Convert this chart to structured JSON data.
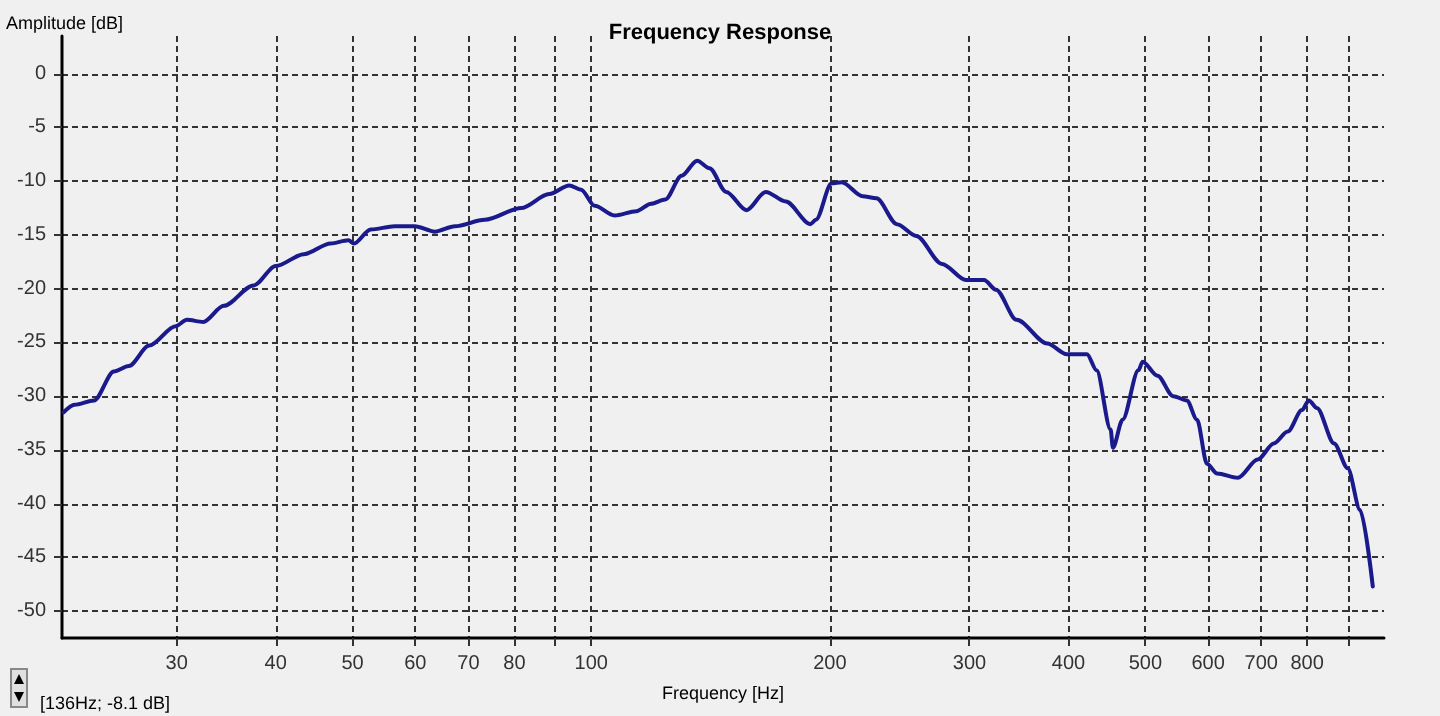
{
  "chart_data": {
    "type": "line",
    "title": "Frequency Response",
    "xlabel": "Frequency [Hz]",
    "ylabel": "Amplitude [dB]",
    "annotations": [
      "[136Hz; -8.1 dB]"
    ],
    "log": "x",
    "grid": true,
    "marker": "none",
    "line_style": "solid",
    "xlim": [
      21.5,
      1000
    ],
    "ylim": [
      -52.5,
      3.5
    ],
    "xticks": [
      30,
      40,
      50,
      60,
      70,
      80,
      {
        "value": 90,
        "label": null
      },
      100,
      200,
      300,
      400,
      500,
      600,
      700,
      800,
      {
        "value": 900,
        "label": null
      }
    ],
    "yticks": [
      0,
      -5,
      -10,
      -15,
      -20,
      -25,
      -30,
      -35,
      -40,
      -45,
      -50
    ],
    "x": [
      21.6,
      22.3,
      23.6,
      25.0,
      26.1,
      27.7,
      29.9,
      30.9,
      32.4,
      34.4,
      37.5,
      40,
      43.4,
      46.9,
      49.4,
      50.2,
      52.7,
      56.5,
      59.9,
      63.5,
      67.3,
      73.4,
      81.6,
      88.5,
      93.8,
      97.1,
      101,
      107,
      114,
      119,
      124,
      130,
      136,
      141,
      148,
      157,
      166,
      176,
      189,
      192,
      201,
      207,
      220,
      229,
      243,
      257,
      277,
      297,
      313,
      324,
      344,
      376,
      398,
      422,
      434,
      452,
      455,
      468,
      490,
      496,
      518,
      542,
      564,
      581,
      598,
      616,
      654,
      693,
      726,
      756,
      788,
      804,
      823,
      865,
      900,
      933,
      968
    ],
    "series": [
      {
        "color": "#1a1a8c",
        "values": [
          -31.5,
          -30.8,
          -30.4,
          -27.7,
          -27.2,
          -25.3,
          -23.5,
          -22.9,
          -23.1,
          -21.6,
          -19.7,
          -17.9,
          -16.8,
          -15.8,
          -15.5,
          -15.8,
          -14.5,
          -14.2,
          -14.2,
          -14.7,
          -14.2,
          -13.6,
          -12.5,
          -11.2,
          -10.4,
          -10.8,
          -12.3,
          -13.2,
          -12.8,
          -12.1,
          -11.7,
          -9.5,
          -8.1,
          -8.8,
          -11.0,
          -12.7,
          -11.0,
          -11.9,
          -14.0,
          -13.6,
          -10.2,
          -10.1,
          -11.4,
          -11.6,
          -14.0,
          -15.1,
          -17.7,
          -19.2,
          -19.2,
          -20.1,
          -22.9,
          -25.1,
          -26.1,
          -26.1,
          -27.6,
          -33.1,
          -34.8,
          -32.2,
          -27.6,
          -26.8,
          -28.1,
          -30.0,
          -30.4,
          -32.2,
          -36.3,
          -37.2,
          -37.6,
          -35.9,
          -34.4,
          -33.3,
          -31.3,
          -30.4,
          -31.1,
          -34.4,
          -36.7,
          -40.6,
          -47.7
        ]
      }
    ]
  }
}
